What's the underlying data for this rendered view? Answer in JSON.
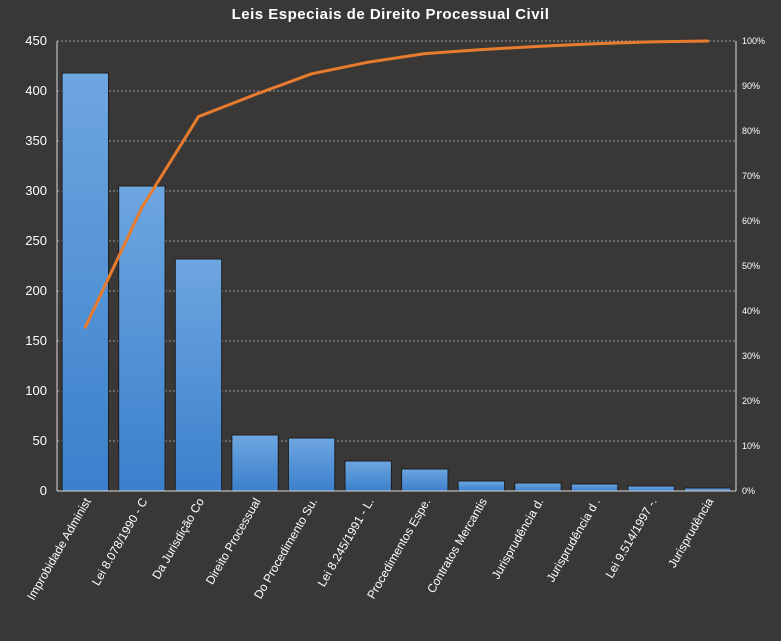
{
  "chart_data": {
    "type": "bar",
    "title": "Leis Especiais  de Direito  Processual Civil",
    "categories": [
      "Improbidade Administ",
      "Lei 8.078/1990 - C",
      "Da Jurisdição Co",
      "Direito Processual",
      "Do Procedimento Su.",
      "Lei 8.245/1991 - L.",
      "Procedimentos Espe.",
      "Contratos Mercantis",
      "Jurisprudência d.",
      "Jurisprudência d .",
      "Lei 9.514/1997 -.",
      "Jurisprudência"
    ],
    "series": [
      {
        "type": "bar",
        "values": [
          418,
          305,
          232,
          56,
          53,
          30,
          22,
          10,
          8,
          7,
          5,
          3
        ],
        "color": "#4a90d9"
      },
      {
        "type": "line",
        "axis": "right",
        "values": [
          36.4,
          63.0,
          83.2,
          88.1,
          92.7,
          95.3,
          97.2,
          98.1,
          98.8,
          99.4,
          99.8,
          100.0
        ],
        "color": "#e87c2e"
      }
    ],
    "ylim": [
      0,
      450
    ],
    "y_ticks": [
      "0",
      "50",
      "100",
      "150",
      "200",
      "250",
      "300",
      "350",
      "400",
      "450"
    ],
    "y2lim": [
      0,
      100
    ],
    "y2_ticks": [
      "0%",
      "10%",
      "20%",
      "30%",
      "40%",
      "50%",
      "60%",
      "70%",
      "80%",
      "90%",
      "100%"
    ],
    "grid": true
  }
}
